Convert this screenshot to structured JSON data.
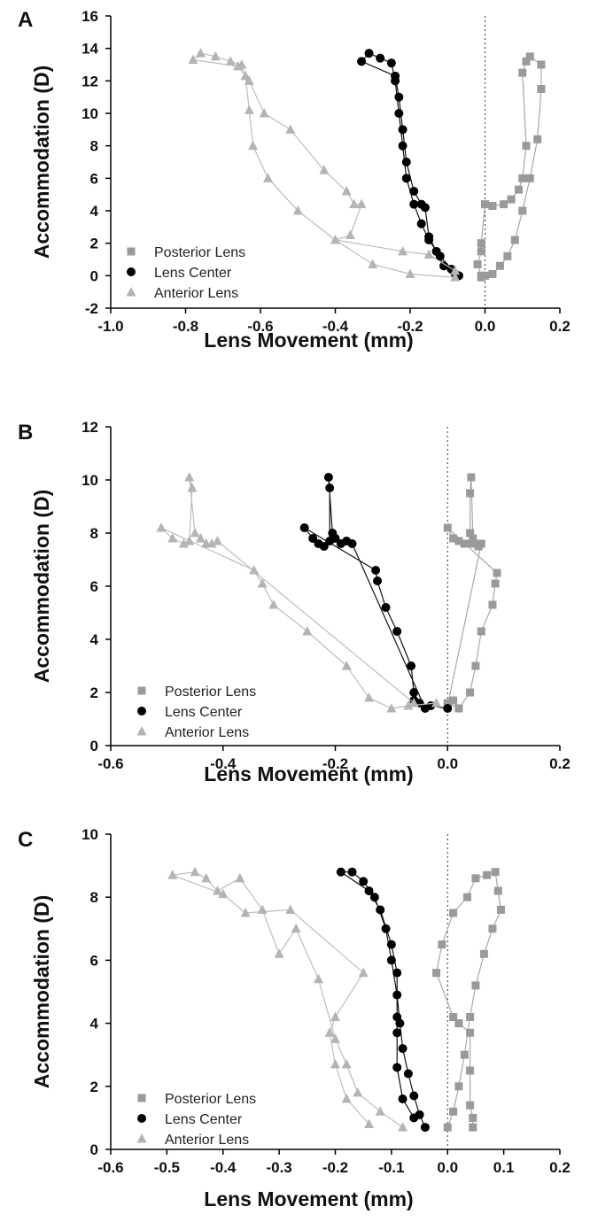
{
  "colors": {
    "posterior": "#9a9a9a",
    "center": "#000000",
    "anterior": "#b4b4b4",
    "axis": "#000000"
  },
  "chart_data": [
    {
      "panel": "A",
      "type": "scatter",
      "xlabel": "Lens Movement (mm)",
      "ylabel": "Accommodation (D)",
      "xlim": [
        -1.0,
        0.2
      ],
      "ylim": [
        -2,
        16
      ],
      "x_ticks": [
        "-1.0",
        "-0.8",
        "-0.6",
        "-0.4",
        "-0.2",
        "0.0",
        "0.2"
      ],
      "y_ticks": [
        "-2",
        "0",
        "2",
        "4",
        "6",
        "8",
        "10",
        "12",
        "14",
        "16"
      ],
      "reference_line_x": 0,
      "legend": [
        "Posterior Lens",
        "Lens Center",
        "Anterior Lens"
      ],
      "series": [
        {
          "name": "Posterior Lens",
          "marker": "square",
          "points": [
            [
              -0.01,
              -0.1
            ],
            [
              0.0,
              0.0
            ],
            [
              0.02,
              0.1
            ],
            [
              0.04,
              0.6
            ],
            [
              0.06,
              1.2
            ],
            [
              0.08,
              2.2
            ],
            [
              0.1,
              4.0
            ],
            [
              0.12,
              6.0
            ],
            [
              0.14,
              8.4
            ],
            [
              0.15,
              11.5
            ],
            [
              0.15,
              13.0
            ],
            [
              0.12,
              13.5
            ],
            [
              0.11,
              13.2
            ],
            [
              0.1,
              12.5
            ],
            [
              0.11,
              8.0
            ],
            [
              0.1,
              6.0
            ],
            [
              0.09,
              5.3
            ],
            [
              0.07,
              4.7
            ],
            [
              0.05,
              4.4
            ],
            [
              0.02,
              4.3
            ],
            [
              0.0,
              4.4
            ],
            [
              -0.01,
              2.0
            ],
            [
              -0.01,
              1.5
            ],
            [
              -0.02,
              0.7
            ],
            [
              -0.01,
              0.0
            ]
          ]
        },
        {
          "name": "Lens Center",
          "marker": "circle",
          "points": [
            [
              -0.07,
              0.0
            ],
            [
              -0.09,
              0.4
            ],
            [
              -0.12,
              1.2
            ],
            [
              -0.15,
              2.2
            ],
            [
              -0.17,
              3.2
            ],
            [
              -0.19,
              4.4
            ],
            [
              -0.21,
              6.0
            ],
            [
              -0.22,
              8.0
            ],
            [
              -0.23,
              10.0
            ],
            [
              -0.24,
              12.0
            ],
            [
              -0.25,
              13.1
            ],
            [
              -0.28,
              13.4
            ],
            [
              -0.31,
              13.7
            ],
            [
              -0.33,
              13.2
            ],
            [
              -0.24,
              12.3
            ],
            [
              -0.23,
              11.0
            ],
            [
              -0.22,
              9.0
            ],
            [
              -0.21,
              7.0
            ],
            [
              -0.19,
              5.2
            ],
            [
              -0.17,
              4.4
            ],
            [
              -0.16,
              4.2
            ],
            [
              -0.15,
              2.4
            ],
            [
              -0.13,
              1.5
            ],
            [
              -0.11,
              0.6
            ],
            [
              -0.08,
              0.1
            ]
          ]
        },
        {
          "name": "Anterior Lens",
          "marker": "triangle",
          "points": [
            [
              -0.08,
              -0.1
            ],
            [
              -0.2,
              0.1
            ],
            [
              -0.3,
              0.7
            ],
            [
              -0.4,
              2.2
            ],
            [
              -0.5,
              4.0
            ],
            [
              -0.58,
              6.0
            ],
            [
              -0.62,
              8.0
            ],
            [
              -0.63,
              10.2
            ],
            [
              -0.64,
              12.3
            ],
            [
              -0.65,
              13.0
            ],
            [
              -0.68,
              13.2
            ],
            [
              -0.72,
              13.5
            ],
            [
              -0.76,
              13.7
            ],
            [
              -0.78,
              13.3
            ],
            [
              -0.66,
              12.9
            ],
            [
              -0.63,
              12.0
            ],
            [
              -0.59,
              10.0
            ],
            [
              -0.52,
              9.0
            ],
            [
              -0.43,
              6.5
            ],
            [
              -0.37,
              5.2
            ],
            [
              -0.35,
              4.4
            ],
            [
              -0.33,
              4.4
            ],
            [
              -0.36,
              2.5
            ],
            [
              -0.4,
              2.2
            ],
            [
              -0.22,
              1.5
            ],
            [
              -0.15,
              1.3
            ],
            [
              -0.08,
              0.3
            ]
          ]
        }
      ]
    },
    {
      "panel": "B",
      "type": "scatter",
      "xlabel": "Lens Movement (mm)",
      "ylabel": "Accommodation (D)",
      "xlim": [
        -0.6,
        0.2
      ],
      "ylim": [
        0,
        12
      ],
      "x_ticks": [
        "-0.6",
        "-0.4",
        "-0.2",
        "0.0",
        "0.2"
      ],
      "y_ticks": [
        "0",
        "2",
        "4",
        "6",
        "8",
        "10",
        "12"
      ],
      "reference_line_x": 0,
      "legend": [
        "Posterior Lens",
        "Lens Center",
        "Anterior Lens"
      ],
      "series": [
        {
          "name": "Posterior Lens",
          "marker": "square",
          "points": [
            [
              0.0,
              1.6
            ],
            [
              0.02,
              1.4
            ],
            [
              0.04,
              2.0
            ],
            [
              0.05,
              3.0
            ],
            [
              0.06,
              4.3
            ],
            [
              0.08,
              5.3
            ],
            [
              0.085,
              6.1
            ],
            [
              0.088,
              6.5
            ],
            [
              0.0,
              8.2
            ],
            [
              0.01,
              7.8
            ],
            [
              0.02,
              7.7
            ],
            [
              0.03,
              7.6
            ],
            [
              0.04,
              7.6
            ],
            [
              0.04,
              8.0
            ],
            [
              0.04,
              9.5
            ],
            [
              0.042,
              10.1
            ],
            [
              0.045,
              7.8
            ],
            [
              0.05,
              7.6
            ],
            [
              0.055,
              7.5
            ],
            [
              0.06,
              7.6
            ],
            [
              0.0,
              1.5
            ],
            [
              0.01,
              1.7
            ]
          ]
        },
        {
          "name": "Lens Center",
          "marker": "circle",
          "points": [
            [
              0.0,
              1.4
            ],
            [
              -0.03,
              1.5
            ],
            [
              -0.05,
              1.6
            ],
            [
              -0.06,
              2.0
            ],
            [
              -0.065,
              3.0
            ],
            [
              -0.09,
              4.3
            ],
            [
              -0.11,
              5.2
            ],
            [
              -0.125,
              6.2
            ],
            [
              -0.128,
              6.6
            ],
            [
              -0.255,
              8.2
            ],
            [
              -0.24,
              7.8
            ],
            [
              -0.23,
              7.6
            ],
            [
              -0.22,
              7.5
            ],
            [
              -0.21,
              7.7
            ],
            [
              -0.21,
              9.7
            ],
            [
              -0.212,
              10.1
            ],
            [
              -0.205,
              8.0
            ],
            [
              -0.2,
              7.8
            ],
            [
              -0.19,
              7.6
            ],
            [
              -0.18,
              7.7
            ],
            [
              -0.17,
              7.6
            ],
            [
              -0.04,
              1.4
            ],
            [
              -0.06,
              1.7
            ]
          ]
        },
        {
          "name": "Anterior Lens",
          "marker": "triangle",
          "points": [
            [
              -0.02,
              1.6
            ],
            [
              -0.07,
              1.5
            ],
            [
              -0.1,
              1.4
            ],
            [
              -0.14,
              1.8
            ],
            [
              -0.18,
              3.0
            ],
            [
              -0.25,
              4.3
            ],
            [
              -0.31,
              5.3
            ],
            [
              -0.33,
              6.1
            ],
            [
              -0.345,
              6.6
            ],
            [
              -0.51,
              8.2
            ],
            [
              -0.49,
              7.8
            ],
            [
              -0.47,
              7.6
            ],
            [
              -0.46,
              7.7
            ],
            [
              -0.455,
              9.7
            ],
            [
              -0.46,
              10.1
            ],
            [
              -0.45,
              8.0
            ],
            [
              -0.44,
              7.8
            ],
            [
              -0.43,
              7.6
            ],
            [
              -0.42,
              7.6
            ],
            [
              -0.41,
              7.7
            ],
            [
              -0.06,
              1.6
            ]
          ]
        }
      ]
    },
    {
      "panel": "C",
      "type": "scatter",
      "xlabel": "Lens Movement (mm)",
      "ylabel": "Accommodation (D)",
      "xlim": [
        -0.6,
        0.2
      ],
      "ylim": [
        0,
        10
      ],
      "x_ticks": [
        "-0.6",
        "-0.5",
        "-0.4",
        "-0.3",
        "-0.2",
        "-0.1",
        "0.0",
        "0.1",
        "0.2"
      ],
      "y_ticks": [
        "0",
        "2",
        "4",
        "6",
        "8",
        "10"
      ],
      "reference_line_x": 0,
      "legend": [
        "Posterior Lens",
        "Lens Center",
        "Anterior Lens"
      ],
      "series": [
        {
          "name": "Posterior Lens",
          "marker": "square",
          "points": [
            [
              0.0,
              0.7
            ],
            [
              0.01,
              1.2
            ],
            [
              0.02,
              2.0
            ],
            [
              0.03,
              3.0
            ],
            [
              0.04,
              4.2
            ],
            [
              0.05,
              5.2
            ],
            [
              0.065,
              6.2
            ],
            [
              0.08,
              7.0
            ],
            [
              0.095,
              7.6
            ],
            [
              0.09,
              8.2
            ],
            [
              0.085,
              8.8
            ],
            [
              0.07,
              8.7
            ],
            [
              0.05,
              8.6
            ],
            [
              0.035,
              8.0
            ],
            [
              0.01,
              7.5
            ],
            [
              -0.01,
              6.5
            ],
            [
              -0.02,
              5.6
            ],
            [
              0.01,
              4.2
            ],
            [
              0.02,
              4.0
            ],
            [
              0.04,
              3.7
            ],
            [
              0.04,
              2.5
            ],
            [
              0.04,
              1.4
            ],
            [
              0.045,
              1.0
            ],
            [
              0.045,
              0.7
            ]
          ]
        },
        {
          "name": "Lens Center",
          "marker": "circle",
          "points": [
            [
              -0.04,
              0.7
            ],
            [
              -0.05,
              1.1
            ],
            [
              -0.06,
              1.7
            ],
            [
              -0.07,
              2.4
            ],
            [
              -0.08,
              3.2
            ],
            [
              -0.085,
              4.0
            ],
            [
              -0.09,
              4.9
            ],
            [
              -0.1,
              6.0
            ],
            [
              -0.11,
              7.0
            ],
            [
              -0.13,
              8.0
            ],
            [
              -0.15,
              8.5
            ],
            [
              -0.17,
              8.8
            ],
            [
              -0.19,
              8.8
            ],
            [
              -0.14,
              8.2
            ],
            [
              -0.12,
              7.6
            ],
            [
              -0.1,
              6.5
            ],
            [
              -0.09,
              5.6
            ],
            [
              -0.09,
              4.2
            ],
            [
              -0.09,
              3.7
            ],
            [
              -0.09,
              2.6
            ],
            [
              -0.08,
              1.6
            ],
            [
              -0.06,
              1.0
            ]
          ]
        },
        {
          "name": "Anterior Lens",
          "marker": "triangle",
          "points": [
            [
              -0.08,
              0.7
            ],
            [
              -0.12,
              1.2
            ],
            [
              -0.16,
              1.8
            ],
            [
              -0.18,
              2.7
            ],
            [
              -0.2,
              3.5
            ],
            [
              -0.23,
              5.4
            ],
            [
              -0.27,
              7.0
            ],
            [
              -0.3,
              6.2
            ],
            [
              -0.33,
              7.6
            ],
            [
              -0.37,
              8.6
            ],
            [
              -0.41,
              8.2
            ],
            [
              -0.43,
              8.6
            ],
            [
              -0.45,
              8.8
            ],
            [
              -0.49,
              8.7
            ],
            [
              -0.4,
              8.1
            ],
            [
              -0.36,
              7.5
            ],
            [
              -0.28,
              7.6
            ],
            [
              -0.15,
              5.6
            ],
            [
              -0.2,
              4.2
            ],
            [
              -0.21,
              3.7
            ],
            [
              -0.2,
              2.7
            ],
            [
              -0.18,
              1.6
            ],
            [
              -0.14,
              0.8
            ]
          ]
        }
      ]
    }
  ]
}
